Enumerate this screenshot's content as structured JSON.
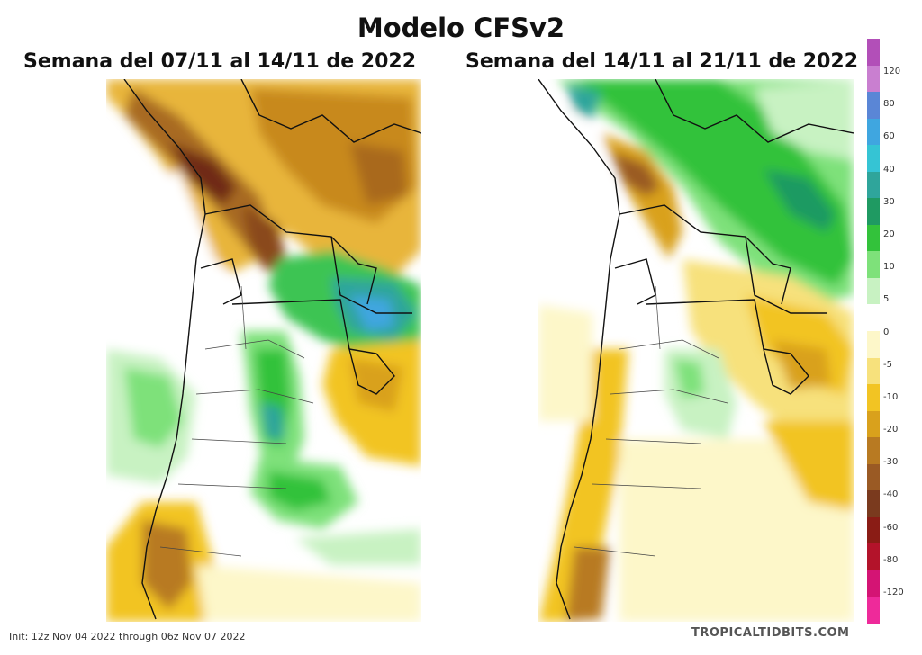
{
  "title": "Modelo CFSv2",
  "panels": [
    {
      "id": "week1",
      "title": "Semana del 07/11 al 14/11 de 2022"
    },
    {
      "id": "week2",
      "title": "Semana del 14/11 al 21/11 de 2022"
    }
  ],
  "footer": {
    "init": "Init: 12z Nov 04 2022 through 06z Nov 07 2022",
    "source": "TROPICALTIDBITS.COM"
  },
  "colorbar": {
    "labels": [
      "120",
      "80",
      "60",
      "40",
      "30",
      "20",
      "10",
      "5",
      "0",
      "-5",
      "-10",
      "-20",
      "-30",
      "-40",
      "-60",
      "-80",
      "-120"
    ],
    "colors": [
      "#b24fb8",
      "#c97fd0",
      "#5a86d6",
      "#3fa6e0",
      "#35c4d4",
      "#2fa59b",
      "#1f9a62",
      "#33c23b",
      "#7ee17a",
      "#c8f2c2",
      "#ffffff",
      "#fdf7c9",
      "#f7e17c",
      "#f2c423",
      "#d9a11c",
      "#b87a22",
      "#9a5a24",
      "#7a3a1e",
      "#8a1c15",
      "#b3132a",
      "#d41474",
      "#ee2a9a"
    ]
  }
}
